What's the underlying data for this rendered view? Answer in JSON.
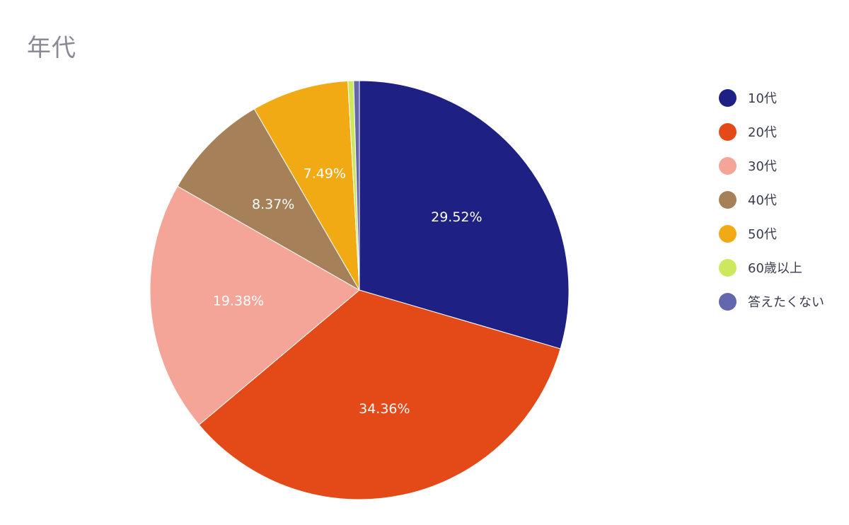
{
  "chart_data": {
    "type": "pie",
    "title": "年代",
    "legend_position": "right",
    "slices": [
      {
        "label": "10代",
        "value": 29.52,
        "display": "29.52%",
        "color": "#1e2084"
      },
      {
        "label": "20代",
        "value": 34.36,
        "display": "34.36%",
        "color": "#e34a18"
      },
      {
        "label": "30代",
        "value": 19.38,
        "display": "19.38%",
        "color": "#f4a598"
      },
      {
        "label": "40代",
        "value": 8.37,
        "display": "8.37%",
        "color": "#a68058"
      },
      {
        "label": "50代",
        "value": 7.49,
        "display": "7.49%",
        "color": "#f2aa14"
      },
      {
        "label": "60歳以上",
        "value": 0.44,
        "display": "",
        "color": "#cde85e"
      },
      {
        "label": "答えたくない",
        "value": 0.44,
        "display": "",
        "color": "#6466ae"
      }
    ]
  }
}
